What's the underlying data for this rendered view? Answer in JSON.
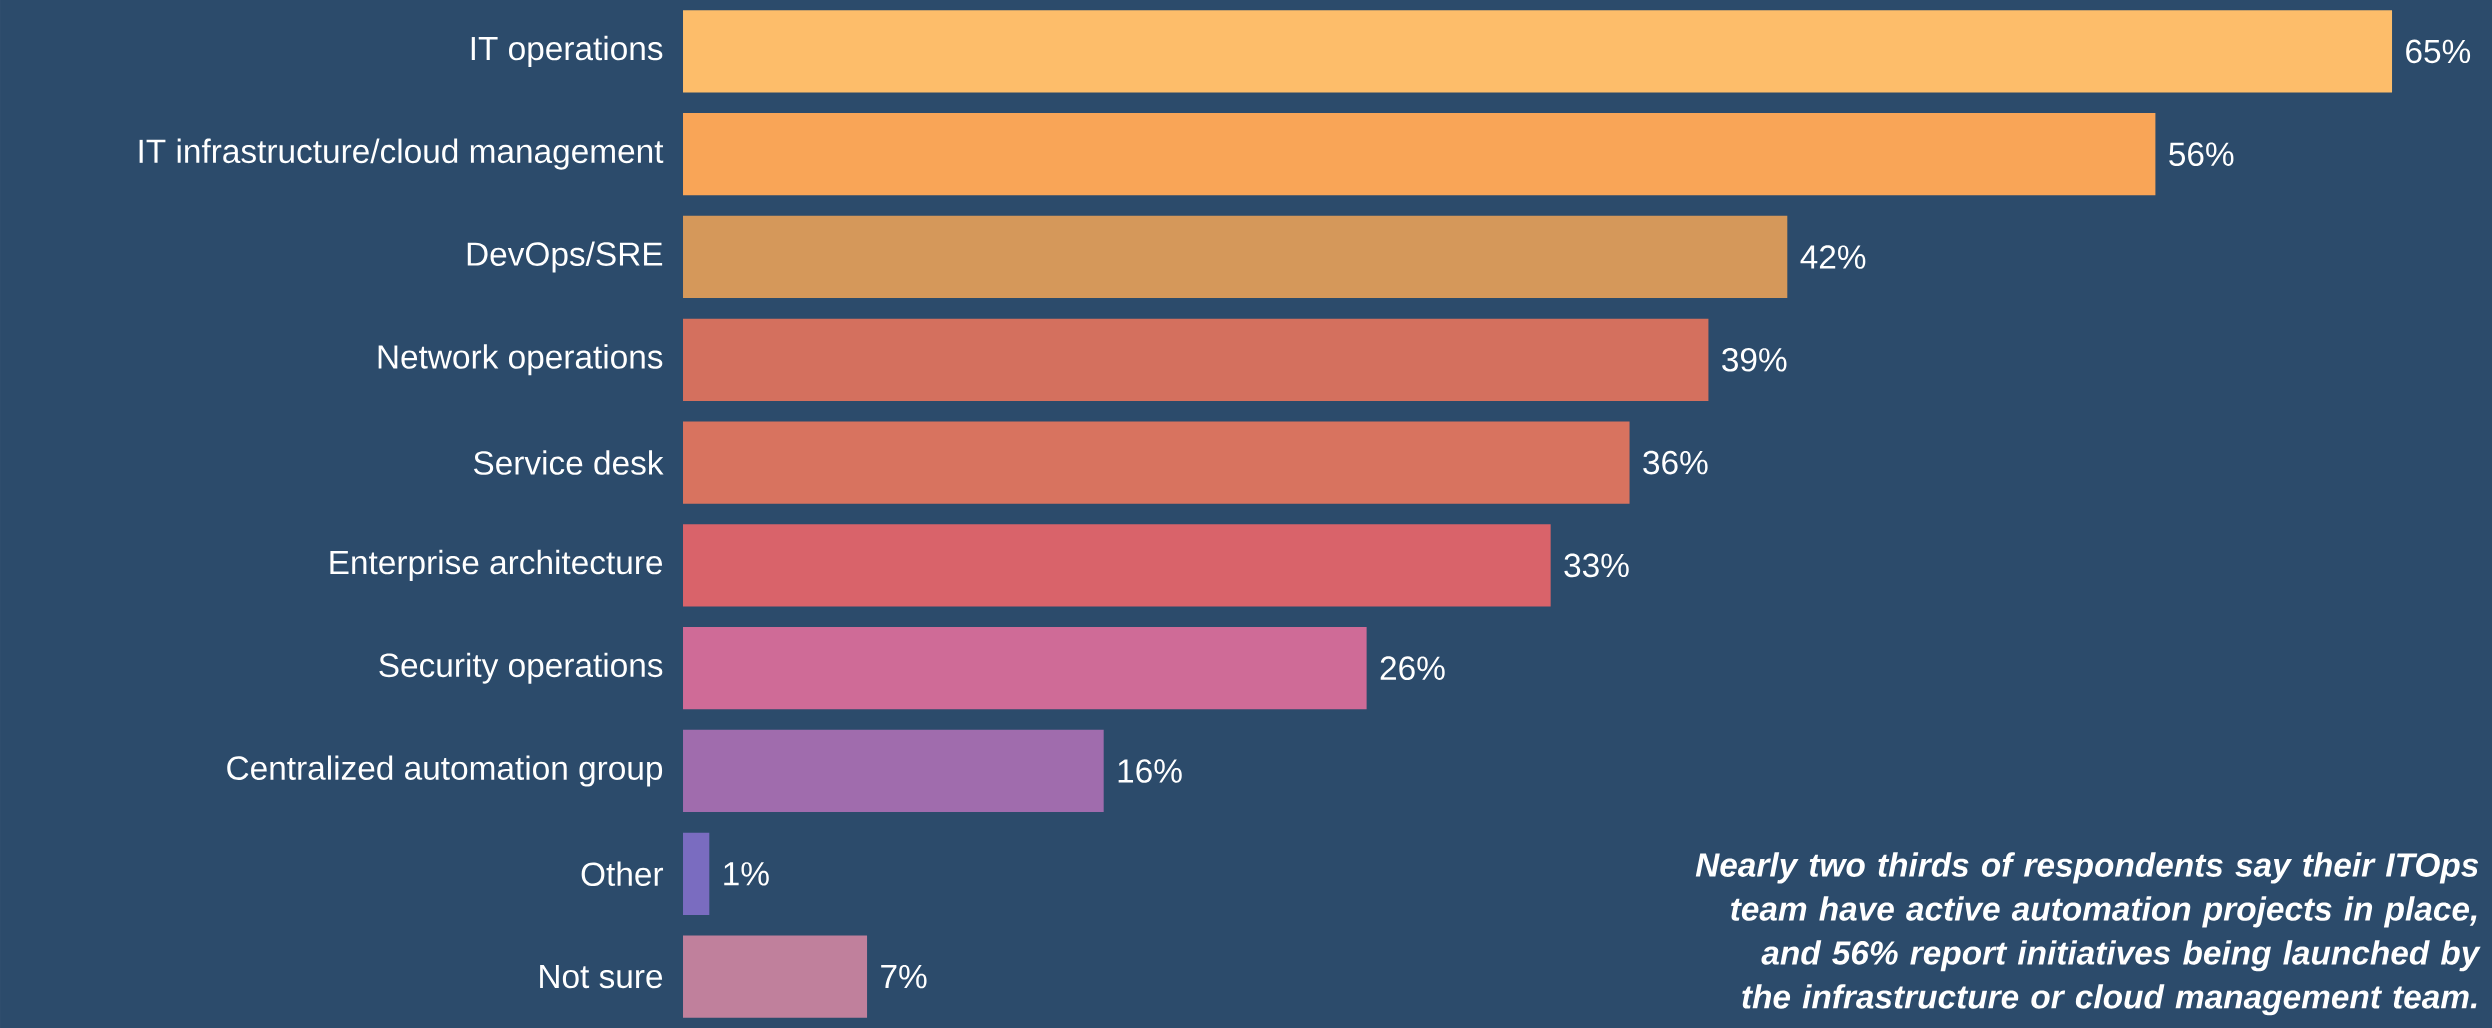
{
  "chart_data": {
    "type": "bar",
    "orientation": "horizontal",
    "categories": [
      "IT operations",
      "IT infrastructure/cloud management",
      "DevOps/SRE",
      "Network operations",
      "Service desk",
      "Enterprise architecture",
      "Security operations",
      "Centralized automation group",
      "Other",
      "Not sure"
    ],
    "values": [
      65,
      56,
      42,
      39,
      36,
      33,
      26,
      16,
      1,
      7
    ],
    "colors": [
      "#fdbd6a",
      "#f9a557",
      "#d5985a",
      "#d4705e",
      "#d8735f",
      "#d9636a",
      "#cf6b97",
      "#a06cad",
      "#7a6cc0",
      "#c0809c"
    ],
    "value_labels": [
      "65%",
      "56%",
      "42%",
      "39%",
      "36%",
      "33%",
      "26%",
      "16%",
      "1%",
      "7%"
    ],
    "annotations": [
      "Nearly two thirds of respondents say their ITOps team have active automation projects in place, and 56% report initiatives being launched by the infrastructure or cloud management team."
    ]
  }
}
